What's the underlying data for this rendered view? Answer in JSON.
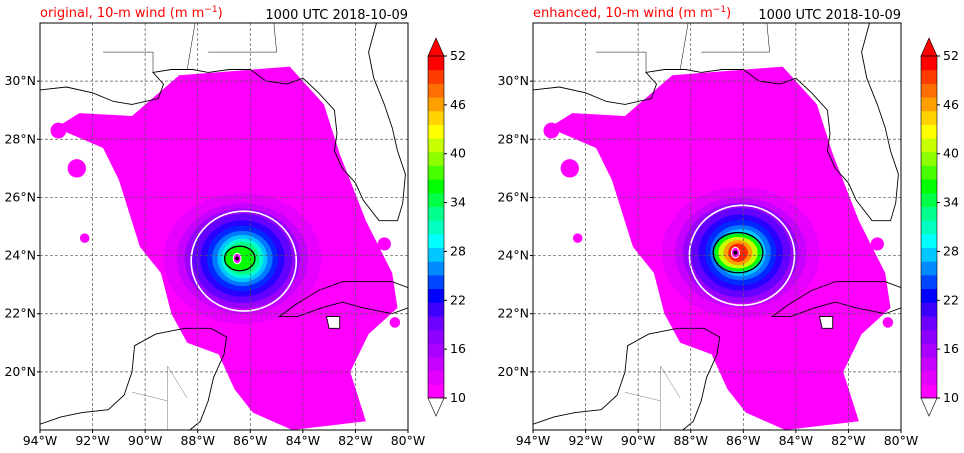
{
  "figure": {
    "panels": [
      {
        "id": "original",
        "title_left": "original, 10-m wind (m m",
        "title_left_sup": "−1",
        "title_left_close": ")",
        "title_right": "1000 UTC 2018-10-09",
        "storm_center": [
          -86.4,
          23.9
        ],
        "green_radius_deg": 0.55,
        "red_radius_deg": 0,
        "outer_radius_deg": 2.0
      },
      {
        "id": "enhanced",
        "title_left": "enhanced, 10-m wind (m m",
        "title_left_sup": "−1",
        "title_left_close": ")",
        "title_right": "1000 UTC 2018-10-09",
        "storm_center": [
          -86.2,
          24.1
        ],
        "green_radius_deg": 0.9,
        "red_radius_deg": 0.5,
        "outer_radius_deg": 2.0
      }
    ]
  },
  "chart_data": [
    {
      "type": "heatmap",
      "title": "original, 10-m wind (m m−1)",
      "subtitle": "1000 UTC 2018-10-09",
      "x_ticks": [
        "94°W",
        "92°W",
        "90°W",
        "88°W",
        "86°W",
        "84°W",
        "82°W",
        "80°W"
      ],
      "x_values": [
        -94,
        -92,
        -90,
        -88,
        -86,
        -84,
        -82,
        -80
      ],
      "y_ticks": [
        "20°N",
        "22°N",
        "24°N",
        "26°N",
        "28°N",
        "30°N"
      ],
      "y_values": [
        20,
        22,
        24,
        26,
        28,
        30
      ],
      "xlim": [
        -94,
        -80
      ],
      "ylim": [
        18,
        32
      ],
      "grid": true,
      "colorbar": {
        "ticks": [
          "10",
          "16",
          "22",
          "28",
          "34",
          "40",
          "46",
          "52"
        ],
        "values": [
          10,
          16,
          22,
          28,
          34,
          40,
          46,
          52
        ],
        "range": [
          10,
          52
        ],
        "colors": [
          "#ff00ff",
          "#e400ff",
          "#c800ff",
          "#aa00ff",
          "#8c00ff",
          "#6e00ff",
          "#3c00ff",
          "#0000ff",
          "#0046ff",
          "#008cff",
          "#00c8ff",
          "#00ffff",
          "#00ffc0",
          "#00ff8c",
          "#00ff46",
          "#00ff00",
          "#46ff00",
          "#8cff00",
          "#c8ff00",
          "#ffff00",
          "#ffd200",
          "#ffa000",
          "#ff6e00",
          "#ff3c00",
          "#ff0000"
        ]
      }
    },
    {
      "type": "heatmap",
      "title": "enhanced, 10-m wind (m m−1)",
      "subtitle": "1000 UTC 2018-10-09",
      "x_ticks": [
        "94°W",
        "92°W",
        "90°W",
        "88°W",
        "86°W",
        "84°W",
        "82°W",
        "80°W"
      ],
      "x_values": [
        -94,
        -92,
        -90,
        -88,
        -86,
        -84,
        -82,
        -80
      ],
      "y_ticks": [
        "20°N",
        "22°N",
        "24°N",
        "26°N",
        "28°N",
        "30°N"
      ],
      "y_values": [
        20,
        22,
        24,
        26,
        28,
        30
      ],
      "xlim": [
        -94,
        -80
      ],
      "ylim": [
        18,
        32
      ],
      "grid": true,
      "colorbar": {
        "ticks": [
          "10",
          "16",
          "22",
          "28",
          "34",
          "40",
          "46",
          "52"
        ],
        "values": [
          10,
          16,
          22,
          28,
          34,
          40,
          46,
          52
        ],
        "range": [
          10,
          52
        ],
        "colors": [
          "#ff00ff",
          "#e400ff",
          "#c800ff",
          "#aa00ff",
          "#8c00ff",
          "#6e00ff",
          "#3c00ff",
          "#0000ff",
          "#0046ff",
          "#008cff",
          "#00c8ff",
          "#00ffff",
          "#00ffc0",
          "#00ff8c",
          "#00ff46",
          "#00ff00",
          "#46ff00",
          "#8cff00",
          "#c8ff00",
          "#ffff00",
          "#ffd200",
          "#ffa000",
          "#ff6e00",
          "#ff3c00",
          "#ff0000"
        ]
      }
    }
  ]
}
